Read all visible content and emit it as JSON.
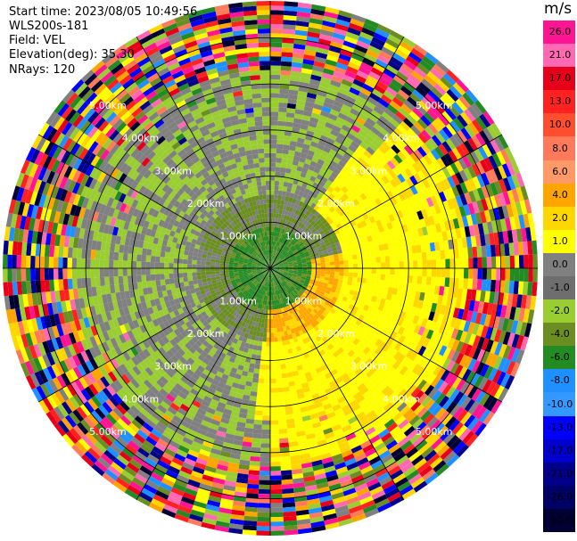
{
  "header": {
    "start_time": "Start time: 2023/08/05 10:49:56",
    "station": "WLS200s-181",
    "field": "Field: VEL",
    "elevation": "Elevation(deg): 35.30",
    "nrays": "NRays: 120"
  },
  "colorbar": {
    "unit": "m/s",
    "ticks": [
      "26.0",
      "21.0",
      "17.0",
      "13.0",
      "10.0",
      "8.0",
      "6.0",
      "4.0",
      "2.0",
      "1.0",
      "0.0",
      "-1.0",
      "-2.0",
      "-4.0",
      "-6.0",
      "-8.0",
      "-10.0",
      "-13.0",
      "-17.0",
      "-21.0",
      "-26.0",
      "-30.0"
    ],
    "colors": [
      "#ff1493",
      "#ff69b4",
      "#e8001a",
      "#ff2020",
      "#ff4d2e",
      "#ff7a5a",
      "#ff9966",
      "#ffa500",
      "#ffd700",
      "#ffff00",
      "#808080",
      "#6e6e6e",
      "#9acd32",
      "#6b8e23",
      "#228b22",
      "#1e90ff",
      "#3399ff",
      "#0000ff",
      "#0000cd",
      "#00008b",
      "#000066",
      "#000033"
    ]
  },
  "chart_data": {
    "type": "ppi",
    "field": "VEL",
    "nrays": 120,
    "elevation_deg": 35.3,
    "unit": "m/s",
    "range_rings_km": [
      1.0,
      2.0,
      3.0,
      4.0,
      5.0
    ],
    "ring_labels": [
      "1.00km",
      "2.00km",
      "3.00km",
      "4.00km",
      "5.00km"
    ],
    "vmin": -30.0,
    "vmax": 30.0
  }
}
